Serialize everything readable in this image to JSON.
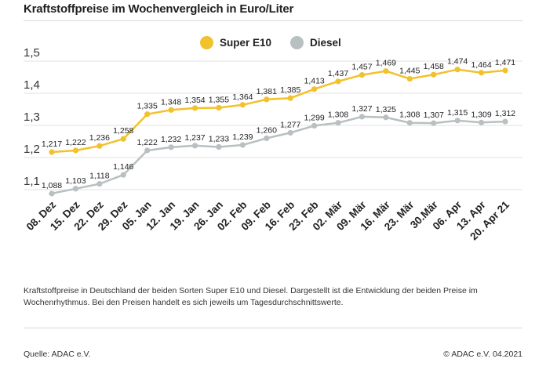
{
  "header": {
    "title": "Kraftstoffpreise im Wochenvergleich in Euro/Liter"
  },
  "legend": {
    "super_label": "Super E10",
    "diesel_label": "Diesel"
  },
  "colors": {
    "super": "#f2c12e",
    "diesel": "#b8c0c2",
    "grid": "#e2e2e2",
    "text": "#222222"
  },
  "chart_data": {
    "type": "line",
    "title": "Kraftstoffpreise im Wochenvergleich in Euro/Liter",
    "xlabel": "",
    "ylabel": "",
    "ylim": [
      1.05,
      1.52
    ],
    "yticks": [
      "1,1",
      "1,2",
      "1,3",
      "1,4",
      "1,5"
    ],
    "ytick_values": [
      1.1,
      1.2,
      1.3,
      1.4,
      1.5
    ],
    "grid": true,
    "legend_position": "top-center",
    "categories": [
      "08. Dez",
      "15. Dez",
      "22. Dez",
      "29. Dez",
      "05. Jan",
      "12. Jan",
      "19. Jan",
      "26. Jan",
      "02. Feb",
      "09. Feb",
      "16. Feb",
      "23. Feb",
      "02. Mär",
      "09. Mär",
      "16. Mär",
      "23. Mär",
      "30.Mär",
      "06. Apr",
      "13. Apr",
      "20. Apr 21"
    ],
    "series": [
      {
        "name": "Super E10",
        "values": [
          1.217,
          1.222,
          1.236,
          1.258,
          1.335,
          1.348,
          1.354,
          1.355,
          1.364,
          1.381,
          1.385,
          1.413,
          1.437,
          1.457,
          1.469,
          1.445,
          1.458,
          1.474,
          1.464,
          1.471
        ],
        "labels": [
          "1,217",
          "1,222",
          "1,236",
          "1,258",
          "1,335",
          "1,348",
          "1,354",
          "1,355",
          "1,364",
          "1,381",
          "1,385",
          "1,413",
          "1,437",
          "1,457",
          "1,469",
          "1,445",
          "1,458",
          "1,474",
          "1,464",
          "1,471"
        ]
      },
      {
        "name": "Diesel",
        "values": [
          1.088,
          1.103,
          1.118,
          1.146,
          1.222,
          1.232,
          1.237,
          1.233,
          1.239,
          1.26,
          1.277,
          1.299,
          1.308,
          1.327,
          1.325,
          1.308,
          1.307,
          1.315,
          1.309,
          1.312
        ],
        "labels": [
          "1,088",
          "1,103",
          "1,118",
          "1,146",
          "1,222",
          "1,232",
          "1,237",
          "1,233",
          "1,239",
          "1,260",
          "1,277",
          "1,299",
          "1,308",
          "1,327",
          "1,325",
          "1,308",
          "1,307",
          "1,315",
          "1,309",
          "1,312"
        ]
      }
    ]
  },
  "footer": {
    "caption": "Kraftstoffpreise in Deutschland der beiden Sorten Super E10 und Diesel. Dargestellt ist die Entwicklung der beiden Preise im Wochenrhythmus. Bei den Preisen handelt es sich jeweils um Tagesdurchschnittswerte.",
    "source": "Quelle: ADAC e.V.",
    "copyright": "© ADAC e.V. 04.2021"
  }
}
